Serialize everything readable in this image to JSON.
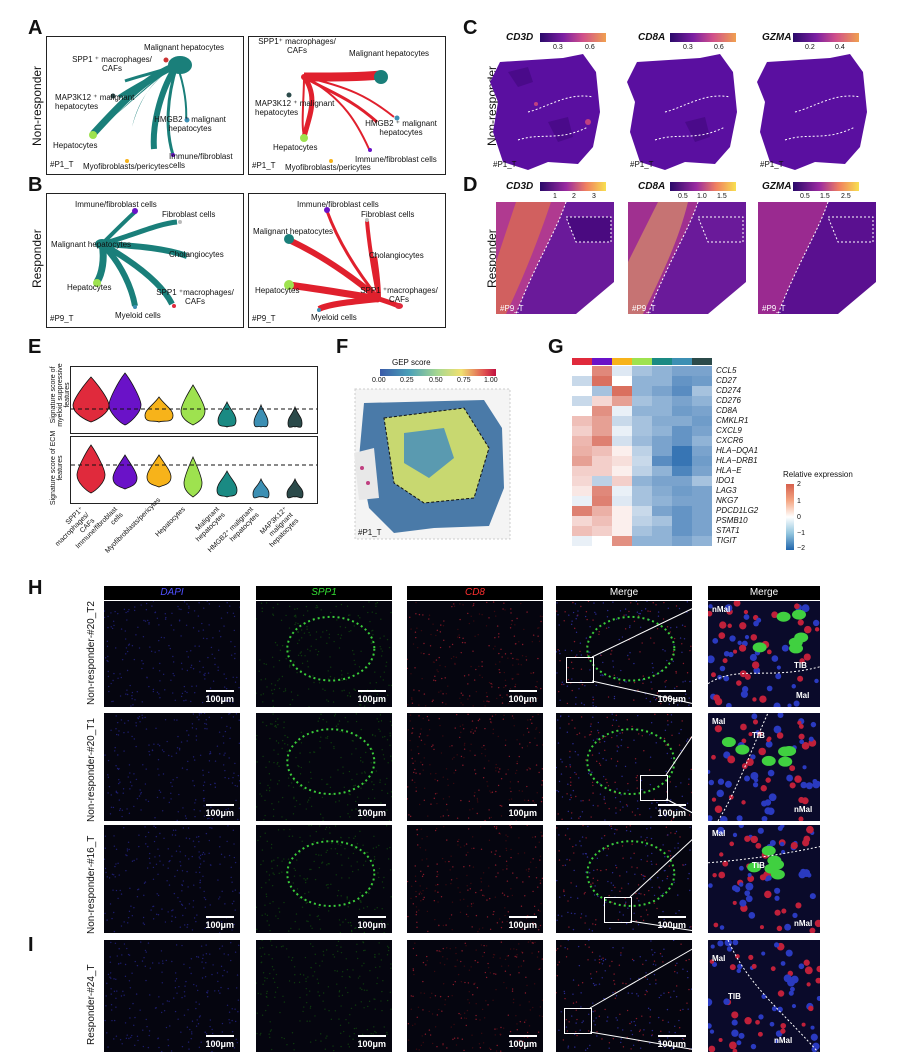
{
  "panels": {
    "A": "A",
    "B": "B",
    "C": "C",
    "D": "D",
    "E": "E",
    "F": "F",
    "G": "G",
    "H": "H",
    "I": "I"
  },
  "row_labels": {
    "non_responder": "Non-responder",
    "responder": "Responder"
  },
  "panel_a": {
    "sample_left": "#P1_T",
    "sample_right": "#P1_T",
    "nodes_left": [
      "Malignant hepatocytes",
      "SPP1 ⁺ macrophages/ CAFs",
      "MAP3K12 ⁺ malignant hepatocytes",
      "HMGB2 ⁺ malignant hepatocytes",
      "Hepatocytes",
      "Immune/fibroblast cells",
      "Myofibroblasts/pericytes"
    ],
    "nodes_right": [
      "SPP1⁺ macrophages/ CAFs",
      "Malignant hepatocytes",
      "MAP3K12 ⁺ malignant hepatocytes",
      "HMGB2 ⁺ malignant hepatocytes",
      "Hepatocytes",
      "Immune/fibroblast cells",
      "Myofibroblasts/pericytes"
    ]
  },
  "panel_b": {
    "sample_left": "#P9_T",
    "sample_right": "#P9_T",
    "nodes_left": [
      "Immune/fibroblast cells",
      "Fibroblast cells",
      "Malignant hepatocytes",
      "Cholangiocytes",
      "Hepatocytes",
      "SPP1 ⁺macrophages/ CAFs",
      "Myeloid cells"
    ],
    "nodes_right": [
      "Immune/fibroblast cells",
      "Fibroblast cells",
      "Malignant hepatocytes",
      "Cholangiocytes",
      "Hepatocytes",
      "SPP1 ⁺macrophages/ CAFs",
      "Myeloid cells"
    ]
  },
  "panel_c": {
    "genes": [
      "CD3D",
      "CD8A",
      "GZMA"
    ],
    "ticks": [
      [
        "0.3",
        "0.6"
      ],
      [
        "0.3",
        "0.6"
      ],
      [
        "0.2",
        "0.4"
      ]
    ],
    "sample": "#P1_T"
  },
  "panel_d": {
    "genes": [
      "CD3D",
      "CD8A",
      "GZMA"
    ],
    "ticks": [
      [
        "1",
        "2",
        "3"
      ],
      [
        "0.5",
        "1.0",
        "1.5"
      ],
      [
        "0.5",
        "1.5",
        "2.5"
      ]
    ],
    "sample": "#P9_T"
  },
  "panel_e": {
    "ylabel_top": "Signature score of myeloid suppressive features",
    "ylabel_bottom": "Signature score of ECM features",
    "categories": [
      "SPP1⁺ macrophages/ CAFs",
      "Immune/fibroblast cells",
      "Myofibroblasts/pericytes",
      "Hepatocytes",
      "Malignant hepatocytes",
      "HMGB2⁺ malignant hepatocytes",
      "MAP3K12⁺ malignant hepatocytes"
    ],
    "colors": [
      "#e02a3c",
      "#6a12c8",
      "#f7b31a",
      "#9ee24f",
      "#1a8a83",
      "#3c8fb3",
      "#2b4a4a"
    ]
  },
  "panel_f": {
    "legend_title": "GEP score",
    "ticks": [
      "0.00",
      "0.25",
      "0.50",
      "0.75",
      "1.00"
    ],
    "sample": "#P1_T"
  },
  "panel_g": {
    "genes": [
      "CCL5",
      "CD27",
      "CD274",
      "CD276",
      "CD8A",
      "CMKLR1",
      "CXCL9",
      "CXCR6",
      "HLA−DQA1",
      "HLA−DRB1",
      "HLA−E",
      "IDO1",
      "LAG3",
      "NKG7",
      "PDCD1LG2",
      "PSMB10",
      "STAT1",
      "TIGIT"
    ],
    "legend_title": "Relative expression",
    "legend_ticks": [
      "2",
      "1",
      "0",
      "−1",
      "−2"
    ],
    "col_colors": [
      "#e02a3c",
      "#6a12c8",
      "#f7b31a",
      "#9ee24f",
      "#1a8a83",
      "#3c8fb3",
      "#2b4a4a"
    ]
  },
  "panel_h": {
    "headers": [
      "DAPI",
      "SPP1",
      "CD8",
      "Merge",
      "Merge"
    ],
    "header_colors": [
      "#3a3aff",
      "#33dd33",
      "#ff2a2a",
      "#ffffff",
      "#ffffff"
    ],
    "rows": [
      "Non-responder-#20_T2",
      "Non-responder-#20_T1",
      "Non-responder-#16_T"
    ],
    "scale": "100μm",
    "zoom_labels": [
      [
        "nMal",
        "TIB",
        "Mal"
      ],
      [
        "Mal",
        "TIB",
        "nMal"
      ],
      [
        "Mal",
        "TIB",
        "nMal"
      ]
    ]
  },
  "panel_i": {
    "row": "Responder-#24_T",
    "scale": "100μm",
    "zoom_labels": [
      "Mal",
      "TIB",
      "nMal"
    ]
  }
}
